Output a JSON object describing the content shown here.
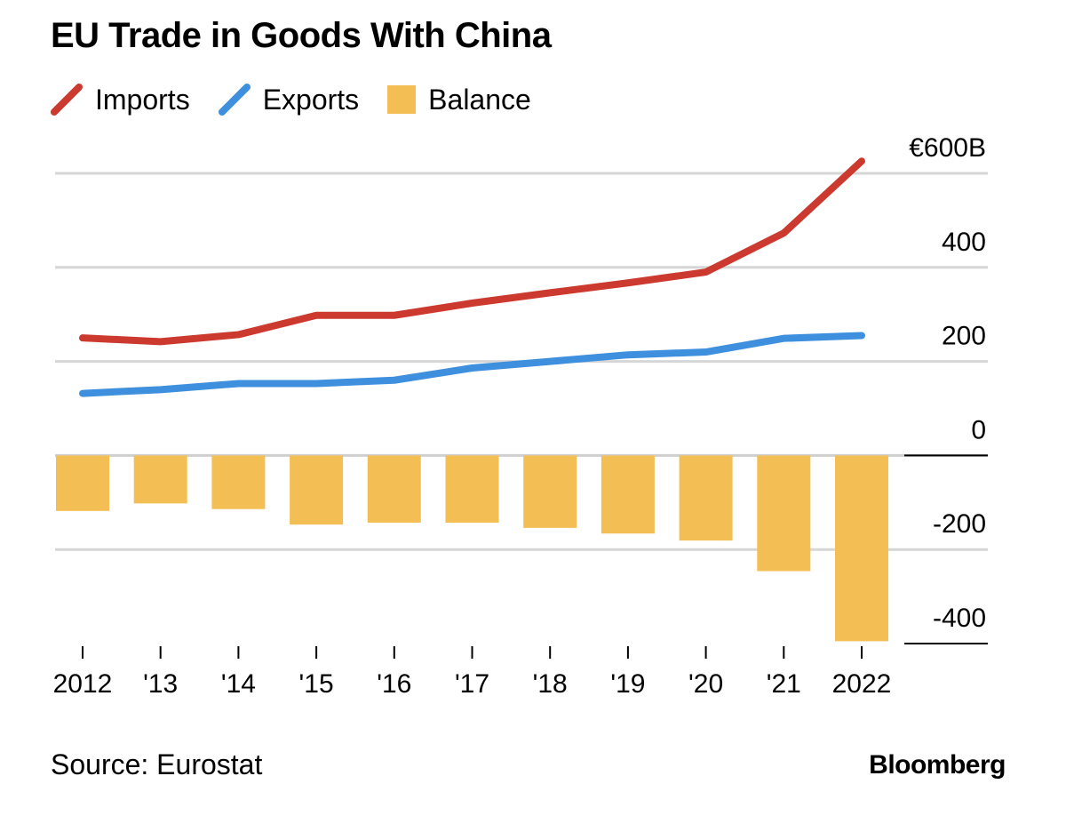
{
  "title": "EU Trade in Goods With China",
  "legend": [
    {
      "label": "Imports",
      "color": "#cc3a2f",
      "shape": "line"
    },
    {
      "label": "Exports",
      "color": "#3f8fdf",
      "shape": "line"
    },
    {
      "label": "Balance",
      "color": "#f3bf54",
      "shape": "square"
    }
  ],
  "source": "Source: Eurostat",
  "brand": "Bloomberg",
  "chart_data": {
    "type": "bar+line",
    "categories": [
      "2012",
      "'13",
      "'14",
      "'15",
      "'16",
      "'17",
      "'18",
      "'19",
      "'20",
      "'21",
      "2022"
    ],
    "series": [
      {
        "name": "Imports",
        "type": "line",
        "color": "#cc3a2f",
        "values": [
          250,
          242,
          257,
          298,
          298,
          324,
          346,
          367,
          390,
          473,
          626
        ]
      },
      {
        "name": "Exports",
        "type": "line",
        "color": "#3f8fdf",
        "values": [
          132,
          140,
          153,
          153,
          160,
          186,
          200,
          214,
          220,
          249,
          255
        ]
      },
      {
        "name": "Balance",
        "type": "bar",
        "color": "#f3bf54",
        "values": [
          -118,
          -102,
          -114,
          -147,
          -143,
          -143,
          -154,
          -166,
          -181,
          -246,
          -395
        ]
      }
    ],
    "yaxis": {
      "min": -400,
      "max": 600,
      "ticks": [
        600,
        400,
        200,
        0,
        -200,
        -400
      ],
      "tick_labels": [
        "€600B",
        "400",
        "200",
        "0",
        "-200",
        "-400"
      ],
      "position": "right"
    },
    "grid": true,
    "legend_position": "top-left"
  }
}
